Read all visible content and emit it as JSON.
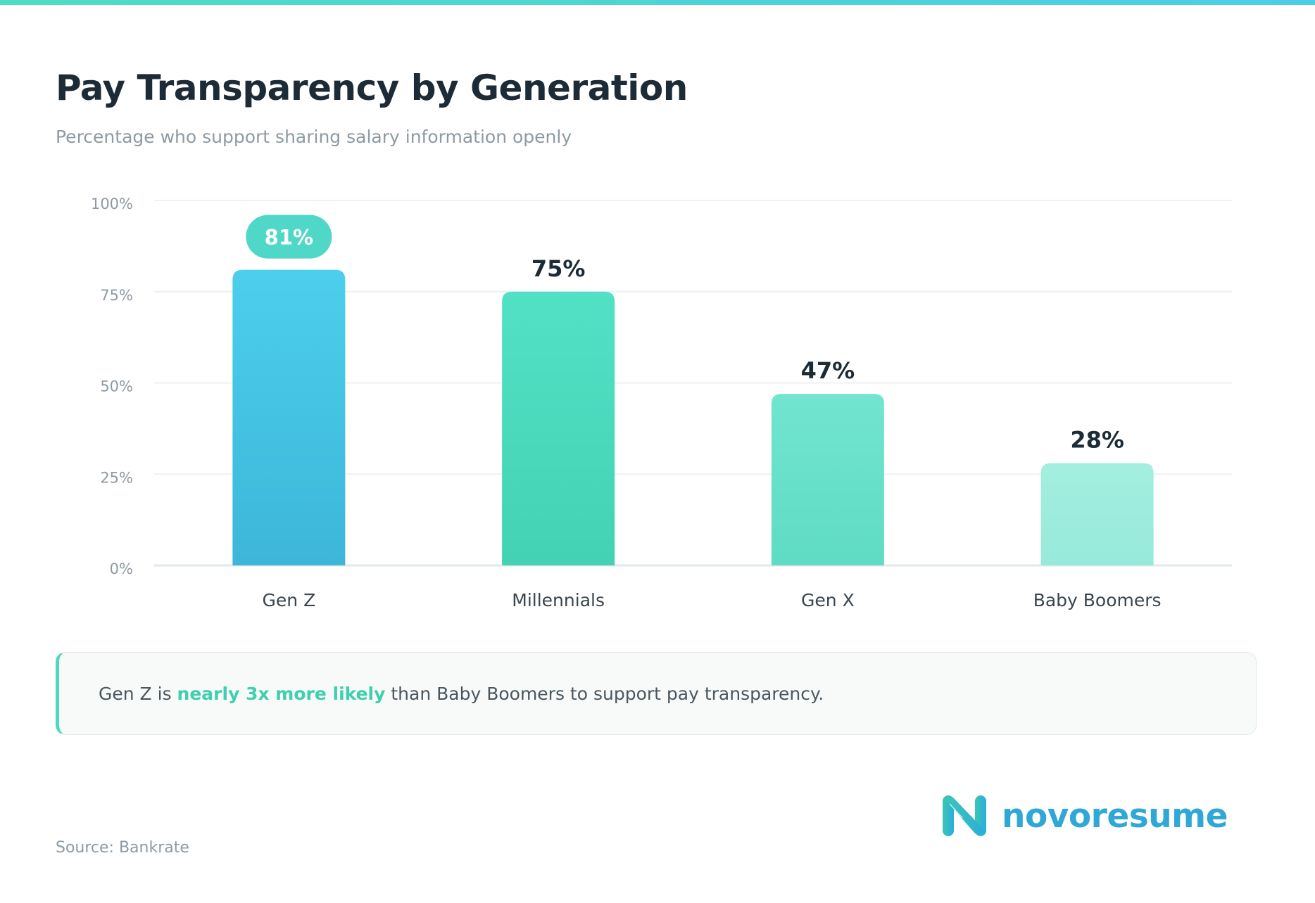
{
  "header": {
    "title": "Pay Transparency by Generation",
    "subtitle": "Percentage who support sharing salary information openly"
  },
  "chart_data": {
    "type": "bar",
    "categories": [
      "Gen Z",
      "Millennials",
      "Gen X",
      "Baby Boomers"
    ],
    "values": [
      81,
      75,
      47,
      28
    ],
    "data_labels": [
      "81%",
      "75%",
      "47%",
      "28%"
    ],
    "highlighted_category": "Gen Z",
    "ylim": [
      0,
      100
    ],
    "yticks": [
      0,
      25,
      50,
      75,
      100
    ],
    "ytick_labels": [
      "0%",
      "25%",
      "50%",
      "75%",
      "100%"
    ],
    "grid": true,
    "xlabel": "",
    "ylabel": "",
    "colors": [
      [
        "#4ccfec",
        "#3db6d9"
      ],
      [
        "#53e1c5",
        "#44d2b4"
      ],
      [
        "#72e4cf",
        "#5fdcc3"
      ],
      [
        "#a3eedf",
        "#97eadb"
      ]
    ],
    "highlight_color": "#4fd8c8"
  },
  "callout": {
    "prefix": "Gen Z is ",
    "highlight": "nearly 3x more likely",
    "suffix": " than Baby Boomers to support pay transparency."
  },
  "footer": {
    "source": "Source: Bankrate",
    "logo_text": "novoresume"
  },
  "colors": {
    "accent": "#4dd9bd",
    "brand": "#2fa8d5",
    "title": "#1c2b35"
  }
}
